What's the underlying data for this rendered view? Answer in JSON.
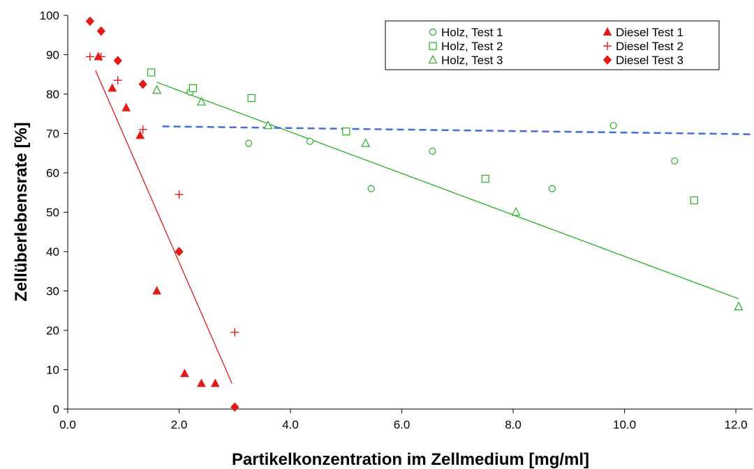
{
  "chart_data": {
    "type": "scatter",
    "xlabel": "Partikelkonzentration im Zellmedium [mg/ml]",
    "ylabel": "Zellüberlebensrate [%]",
    "xlim": [
      0,
      12.3
    ],
    "ylim": [
      0,
      100
    ],
    "x_ticks": [
      "0.0",
      "2.0",
      "4.0",
      "6.0",
      "8.0",
      "10.0",
      "12.0"
    ],
    "y_ticks": [
      "0",
      "10",
      "20",
      "30",
      "40",
      "50",
      "60",
      "70",
      "80",
      "90",
      "100"
    ],
    "legend_position": "top-right",
    "grid": false,
    "series": [
      {
        "name": "Holz, Test 1",
        "marker": "circle-open",
        "color": "#22b022",
        "points": [
          [
            2.2,
            80.5
          ],
          [
            3.25,
            67.5
          ],
          [
            4.35,
            68
          ],
          [
            5.45,
            56
          ],
          [
            6.55,
            65.5
          ],
          [
            8.7,
            56
          ],
          [
            9.8,
            72
          ],
          [
            10.9,
            63
          ]
        ]
      },
      {
        "name": "Holz, Test 2",
        "marker": "square-open",
        "color": "#22b022",
        "points": [
          [
            1.5,
            85.5
          ],
          [
            2.25,
            81.5
          ],
          [
            3.3,
            79
          ],
          [
            5.0,
            70.5
          ],
          [
            7.5,
            58.5
          ],
          [
            11.25,
            53
          ]
        ]
      },
      {
        "name": "Holz, Test 3",
        "marker": "triangle-open",
        "color": "#22b022",
        "points": [
          [
            1.6,
            81
          ],
          [
            2.4,
            78
          ],
          [
            3.6,
            72
          ],
          [
            5.35,
            67.5
          ],
          [
            8.05,
            50
          ],
          [
            12.05,
            26
          ]
        ]
      },
      {
        "name": "Diesel Test 1",
        "marker": "triangle-filled",
        "color": "#e11a1a",
        "points": [
          [
            0.55,
            89.5
          ],
          [
            0.8,
            81.5
          ],
          [
            1.05,
            76.5
          ],
          [
            1.3,
            69.5
          ],
          [
            1.6,
            30
          ],
          [
            2.1,
            9
          ],
          [
            2.4,
            6.5
          ],
          [
            2.65,
            6.5
          ]
        ]
      },
      {
        "name": "Diesel Test 2",
        "marker": "plus",
        "color": "#e11a1a",
        "points": [
          [
            0.4,
            89.5
          ],
          [
            0.6,
            89.5
          ],
          [
            0.9,
            83.5
          ],
          [
            1.35,
            71
          ],
          [
            2.0,
            54.5
          ],
          [
            3.0,
            19.5
          ]
        ]
      },
      {
        "name": "Diesel Test 3",
        "marker": "diamond-filled",
        "color": "#e11a1a",
        "points": [
          [
            0.4,
            98.5
          ],
          [
            0.6,
            96
          ],
          [
            0.9,
            88.5
          ],
          [
            1.35,
            82.5
          ],
          [
            2.0,
            40
          ],
          [
            3.0,
            0.5
          ]
        ]
      }
    ],
    "trendlines": [
      {
        "color": "#e11a1a",
        "style": "solid",
        "from": [
          0.5,
          86
        ],
        "to": [
          2.95,
          6.5
        ]
      },
      {
        "color": "#22b022",
        "style": "solid",
        "from": [
          1.6,
          83
        ],
        "to": [
          12.05,
          28
        ]
      },
      {
        "color": "#3b6fe0",
        "style": "dashed",
        "from": [
          1.7,
          71.8
        ],
        "to": [
          12.3,
          69.8
        ]
      }
    ]
  }
}
